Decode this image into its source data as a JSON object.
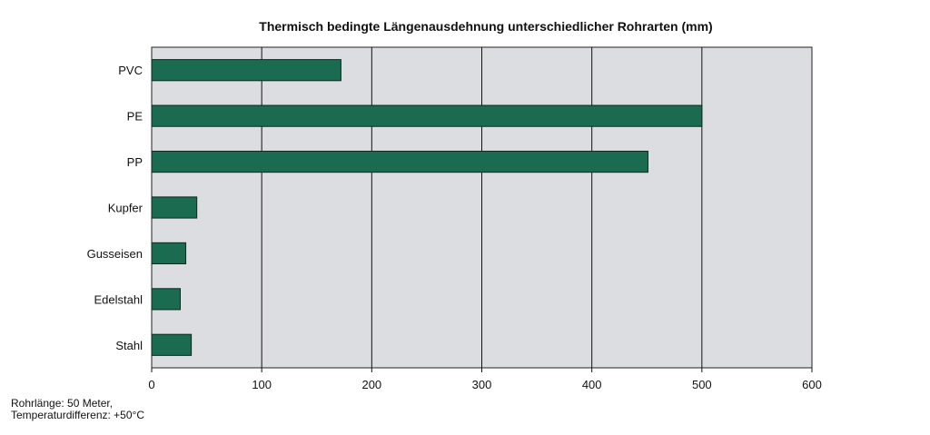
{
  "chart_data": {
    "type": "bar",
    "orientation": "horizontal",
    "title": "Thermisch bedingte Längenausdehnung unterschiedlicher Rohrarten (mm)",
    "categories": [
      "PVC",
      "PE",
      "PP",
      "Kupfer",
      "Gusseisen",
      "Edelstahl",
      "Stahl"
    ],
    "values": [
      172,
      500,
      451,
      41,
      31,
      26,
      36
    ],
    "xlim": [
      0,
      600
    ],
    "xticks": [
      "0",
      "100",
      "200",
      "300",
      "400",
      "500",
      "600"
    ],
    "grid": "vertical",
    "colors": {
      "bar": "#1a6b50",
      "plot_background": "#dcdde0"
    }
  },
  "notes": {
    "line1": "Rohrlänge: 50 Meter,",
    "line2": "Temperaturdifferenz: +50°C"
  }
}
